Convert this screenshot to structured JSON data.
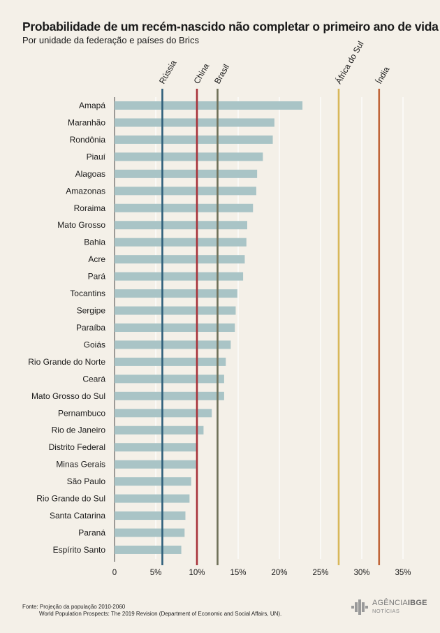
{
  "chart_data": {
    "type": "bar",
    "orientation": "horizontal",
    "title": "Probabilidade de um recém-nascido não completar o primeiro ano de vida",
    "subtitle": "Por unidade da federação e países do Brics",
    "categories": [
      "Amapá",
      "Maranhão",
      "Rondônia",
      "Piauí",
      "Alagoas",
      "Amazonas",
      "Roraima",
      "Mato Grosso",
      "Bahia",
      "Acre",
      "Pará",
      "Tocantins",
      "Sergipe",
      "Paraíba",
      "Goiás",
      "Rio Grande do Norte",
      "Ceará",
      "Mato Grosso do Sul",
      "Pernambuco",
      "Rio de Janeiro",
      "Distrito Federal",
      "Minas Gerais",
      "São Paulo",
      "Rio Grande do Sul",
      "Santa Catarina",
      "Paraná",
      "Espírito Santo"
    ],
    "values": [
      22.8,
      19.4,
      19.2,
      18.0,
      17.3,
      17.2,
      16.8,
      16.1,
      16.0,
      15.8,
      15.6,
      14.9,
      14.7,
      14.6,
      14.1,
      13.5,
      13.3,
      13.3,
      11.8,
      10.8,
      10.1,
      9.9,
      9.3,
      9.1,
      8.6,
      8.5,
      8.1
    ],
    "xlim": [
      0,
      35
    ],
    "ticks": [
      0,
      5,
      10,
      15,
      20,
      25,
      30,
      35
    ],
    "tick_labels": [
      "0",
      "5%",
      "10%",
      "15%",
      "20%",
      "25%",
      "30%",
      "35%"
    ],
    "bar_color": "#a9c4c6",
    "grid": true,
    "reference_lines": [
      {
        "label": "Rússia",
        "value": 5.8,
        "color": "#2f5f7a"
      },
      {
        "label": "China",
        "value": 10.0,
        "color": "#a8323a"
      },
      {
        "label": "Brasil",
        "value": 12.5,
        "color": "#6f7159"
      },
      {
        "label": "África do Sul",
        "value": 27.2,
        "color": "#d8b85a"
      },
      {
        "label": "Índia",
        "value": 32.1,
        "color": "#c0663a"
      }
    ]
  },
  "footer": {
    "source_line1": "Fonte: Projeção da população 2010-2060",
    "source_line2": "World Population Prospects: The 2019 Revision (Department of Economic and Social Affairs, UN)."
  },
  "logo": {
    "brand_light": "AGÊNCIA",
    "brand_bold": "IBGE",
    "sub": "NOTÍCIAS"
  }
}
